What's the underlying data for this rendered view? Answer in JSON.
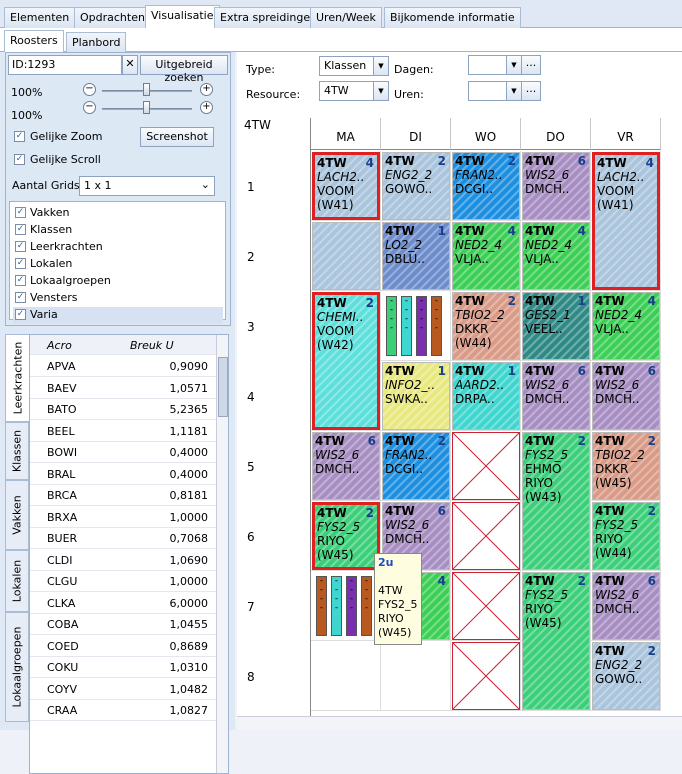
{
  "tabs": [
    "Elementen",
    "Opdrachten",
    "Visualisatie",
    "Extra spreidingen",
    "Uren/Week",
    "Bijkomende informatie"
  ],
  "subtabs": [
    "Roosters",
    "Planbord"
  ],
  "search": {
    "value": "ID:1293",
    "clear": "✕",
    "button": "Uitgebreid zoeken"
  },
  "zoom1": "100%",
  "zoom2": "100%",
  "options": {
    "zoom": "Gelijke Zoom",
    "scroll": "Gelijke Scroll",
    "screenshot": "Screenshot",
    "grids_label": "Aantal Grids",
    "grids_value": "1 x 1"
  },
  "checklist": [
    "Vakken",
    "Klassen",
    "Leerkrachten",
    "Lokalen",
    "Lokaalgroepen",
    "Vensters",
    "Varia"
  ],
  "vtabs": [
    "Leerkrachten",
    "Klassen",
    "Vakken",
    "Lokalen",
    "Lokaalgroepen"
  ],
  "table": {
    "headers": [
      "Acro",
      "Breuk U"
    ],
    "rows": [
      [
        "APVA",
        "0,9090"
      ],
      [
        "BAEV",
        "1,0571"
      ],
      [
        "BATO",
        "5,2365"
      ],
      [
        "BEEL",
        "1,1181"
      ],
      [
        "BOWI",
        "0,4000"
      ],
      [
        "BRAL",
        "0,4000"
      ],
      [
        "BRCA",
        "0,8181"
      ],
      [
        "BRXA",
        "1,0000"
      ],
      [
        "BUER",
        "0,7068"
      ],
      [
        "CLDI",
        "1,0690"
      ],
      [
        "CLGU",
        "1,0000"
      ],
      [
        "CLKA",
        "6,0000"
      ],
      [
        "COBA",
        "1,0455"
      ],
      [
        "COED",
        "0,8689"
      ],
      [
        "COKU",
        "1,0310"
      ],
      [
        "COYV",
        "1,0482"
      ],
      [
        "CRAA",
        "1,0827"
      ]
    ]
  },
  "filters": {
    "type_label": "Type:",
    "type_value": "Klassen",
    "resource_label": "Resource:",
    "resource_value": "4TW",
    "dagen_label": "Dagen:",
    "uren_label": "Uren:",
    "more": "..."
  },
  "grid": {
    "title": "4TW",
    "days": [
      "MA",
      "DI",
      "WO",
      "DO",
      "VR"
    ],
    "hours": [
      "1",
      "2",
      "3",
      "4",
      "5",
      "6",
      "7",
      "8"
    ]
  },
  "lessons": [
    {
      "d": 0,
      "h": 0,
      "len": 1,
      "c": "4TW",
      "n": "4",
      "s": "LACH2..",
      "t": "VOOM",
      "r": "(W41)",
      "col": "#a9c4dc"
    },
    {
      "d": 1,
      "h": 0,
      "len": 1,
      "c": "4TW",
      "n": "2",
      "s": "ENG2_2",
      "t": "GOWO..",
      "r": "",
      "col": "#a9c4dc"
    },
    {
      "d": 2,
      "h": 0,
      "len": 1,
      "c": "4TW",
      "n": "2",
      "s": "FRAN2..",
      "t": "DCGI..",
      "r": "",
      "col": "#1c8fe0"
    },
    {
      "d": 3,
      "h": 0,
      "len": 1,
      "c": "4TW",
      "n": "6",
      "s": "WIS2_6",
      "t": "DMCH..",
      "r": "",
      "col": "#a78ec2"
    },
    {
      "d": 4,
      "h": 0,
      "len": 2,
      "c": "4TW",
      "n": "4",
      "s": "LACH2..",
      "t": "VOOM",
      "r": "(W41)",
      "col": "#a9c4dc"
    },
    {
      "d": 0,
      "h": 1,
      "len": 1,
      "c": "",
      "n": "",
      "s": "",
      "t": "",
      "r": "",
      "col": "#a9c4dc"
    },
    {
      "d": 1,
      "h": 1,
      "len": 1,
      "c": "4TW",
      "n": "1",
      "s": "LO2_2",
      "t": "DBLU..",
      "r": "",
      "col": "#6d8ccc"
    },
    {
      "d": 2,
      "h": 1,
      "len": 1,
      "c": "4TW",
      "n": "4",
      "s": "NED2_4",
      "t": "VLJA..",
      "r": "",
      "col": "#3ccf55"
    },
    {
      "d": 3,
      "h": 1,
      "len": 1,
      "c": "4TW",
      "n": "4",
      "s": "NED2_4",
      "t": "VLJA..",
      "r": "",
      "col": "#3ccf55"
    },
    {
      "d": 0,
      "h": 2,
      "len": 2,
      "c": "4TW",
      "n": "2",
      "s": "CHEMI..",
      "t": "VOOM",
      "r": "(W42)",
      "col": "#5de0dc"
    },
    {
      "d": 2,
      "h": 2,
      "len": 1,
      "c": "4TW",
      "n": "2",
      "s": "TBIO2_2",
      "t": "DKKR",
      "r": "(W44)",
      "col": "#d99a86"
    },
    {
      "d": 3,
      "h": 2,
      "len": 1,
      "c": "4TW",
      "n": "1",
      "s": "GES2_1",
      "t": "VEEL..",
      "r": "",
      "col": "#2f8a86"
    },
    {
      "d": 4,
      "h": 2,
      "len": 1,
      "c": "4TW",
      "n": "4",
      "s": "NED2_4",
      "t": "VLJA..",
      "r": "",
      "col": "#3ccf55"
    },
    {
      "d": 1,
      "h": 3,
      "len": 1,
      "c": "4TW",
      "n": "1",
      "s": "INFO2_..",
      "t": "SWKA..",
      "r": "",
      "col": "#e8e880"
    },
    {
      "d": 2,
      "h": 3,
      "len": 1,
      "c": "4TW",
      "n": "1",
      "s": "AARD2..",
      "t": "DRPA..",
      "r": "",
      "col": "#3fd6cf"
    },
    {
      "d": 3,
      "h": 3,
      "len": 1,
      "c": "4TW",
      "n": "6",
      "s": "WIS2_6",
      "t": "DMCH..",
      "r": "",
      "col": "#a78ec2"
    },
    {
      "d": 4,
      "h": 3,
      "len": 1,
      "c": "4TW",
      "n": "6",
      "s": "WIS2_6",
      "t": "DMCH..",
      "r": "",
      "col": "#a78ec2"
    },
    {
      "d": 0,
      "h": 4,
      "len": 1,
      "c": "4TW",
      "n": "6",
      "s": "WIS2_6",
      "t": "DMCH..",
      "r": "",
      "col": "#a78ec2"
    },
    {
      "d": 1,
      "h": 4,
      "len": 1,
      "c": "4TW",
      "n": "2",
      "s": "FRAN2..",
      "t": "DCGI..",
      "r": "",
      "col": "#1c8fe0"
    },
    {
      "d": 3,
      "h": 4,
      "len": 2,
      "c": "4TW",
      "n": "2",
      "s": "FYS2_5",
      "t": "EHMO",
      "r": "RIYO",
      "x": "(W43)",
      "col": "#3ccf7a"
    },
    {
      "d": 4,
      "h": 4,
      "len": 1,
      "c": "4TW",
      "n": "2",
      "s": "TBIO2_2",
      "t": "DKKR",
      "r": "(W45)",
      "col": "#d99a86"
    },
    {
      "d": 0,
      "h": 5,
      "len": 1,
      "c": "4TW",
      "n": "2",
      "s": "FYS2_5",
      "t": "RIYO",
      "r": "(W45)",
      "col": "#3ccf7a"
    },
    {
      "d": 1,
      "h": 5,
      "len": 1,
      "c": "4TW",
      "n": "6",
      "s": "WIS2_6",
      "t": "DMCH..",
      "r": "",
      "col": "#a78ec2"
    },
    {
      "d": 4,
      "h": 5,
      "len": 1,
      "c": "4TW",
      "n": "2",
      "s": "FYS2_5",
      "t": "RIYO",
      "r": "(W44)",
      "col": "#3ccf7a"
    },
    {
      "d": 1,
      "h": 6,
      "len": 1,
      "c": "",
      "n": "4",
      "s": "",
      "t": "",
      "r": "",
      "col": "#3ccf55"
    },
    {
      "d": 3,
      "h": 6,
      "len": 2,
      "c": "4TW",
      "n": "2",
      "s": "FYS2_5",
      "t": "RIYO",
      "r": "(W45)",
      "col": "#3ccf7a"
    },
    {
      "d": 4,
      "h": 6,
      "len": 1,
      "c": "4TW",
      "n": "6",
      "s": "WIS2_6",
      "t": "DMCH..",
      "r": "",
      "col": "#a78ec2"
    },
    {
      "d": 4,
      "h": 7,
      "len": 1,
      "c": "4TW",
      "n": "2",
      "s": "ENG2_2",
      "t": "GOWO..",
      "r": "",
      "col": "#a9c4dc"
    }
  ],
  "tooltip": {
    "count": "2u",
    "lines": [
      "4TW",
      "FYS2_5",
      "RIYO",
      "(W45)"
    ]
  }
}
